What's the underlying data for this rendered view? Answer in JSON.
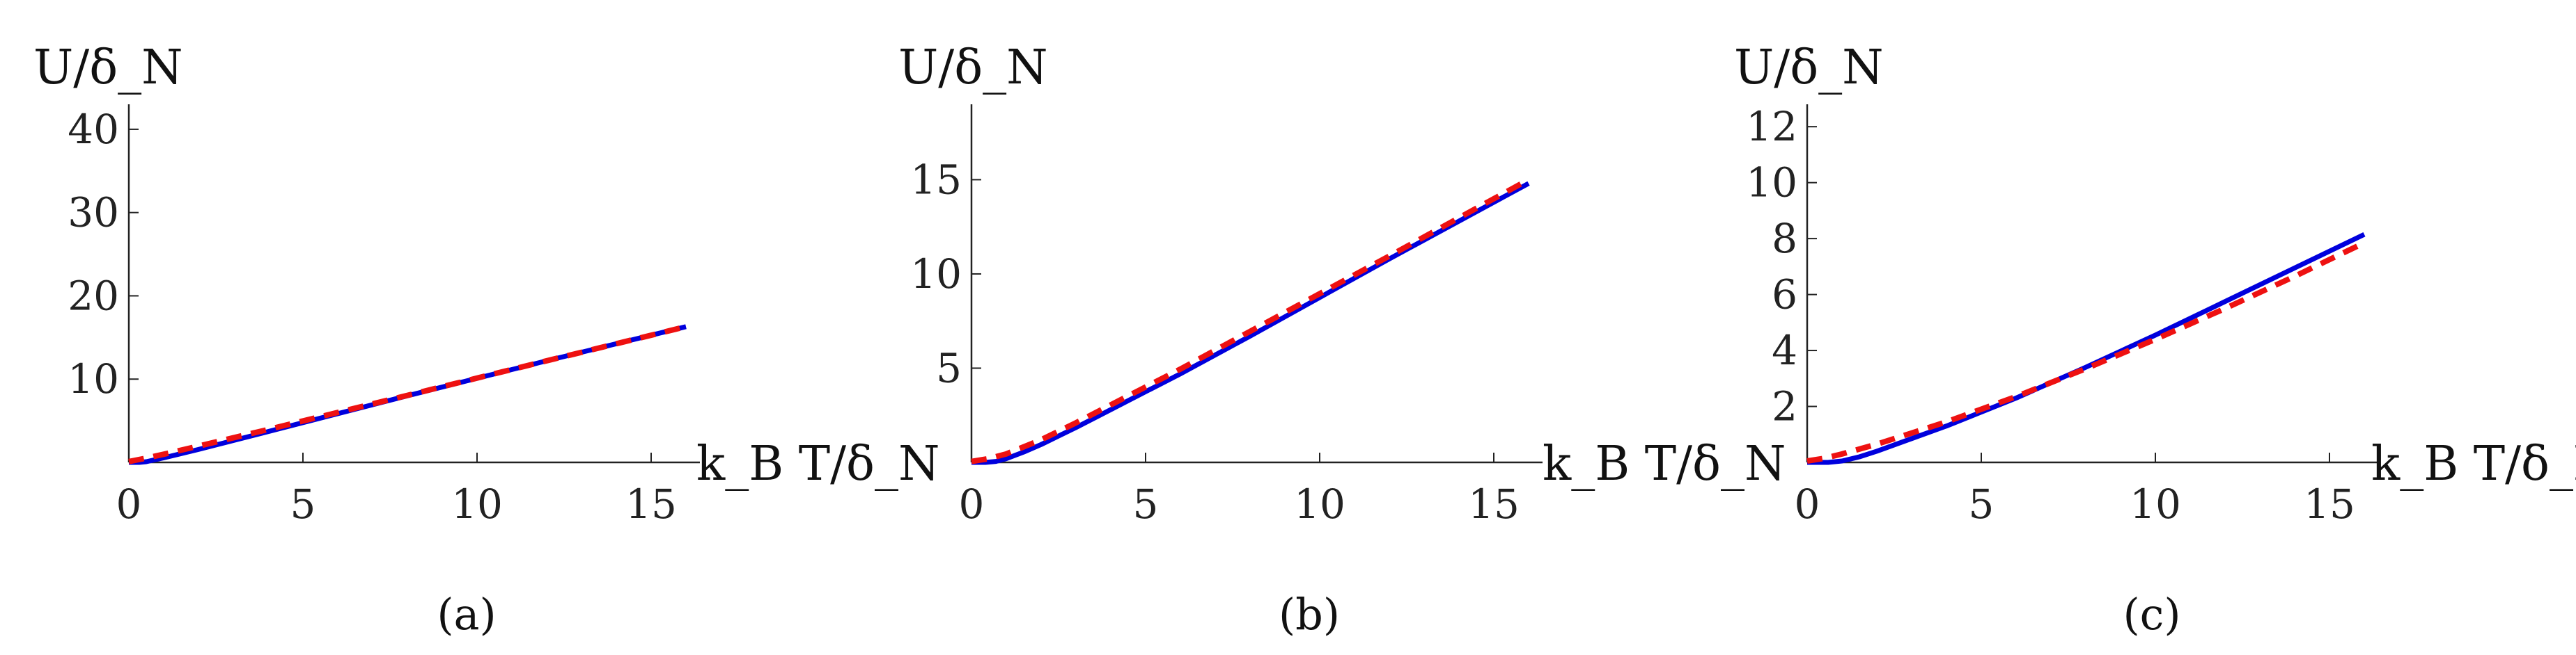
{
  "style": {
    "solid_color": "#0000dd",
    "dashed_color": "#ee1111",
    "axis_color": "#222222"
  },
  "chart_data": [
    {
      "type": "line",
      "panel_label": "(a)",
      "caption_letter": "a",
      "xlabel": "k_B T/δ_N",
      "ylabel": "U/δ_N",
      "xlim": [
        0,
        16
      ],
      "ylim": [
        0,
        43
      ],
      "xticks": [
        0,
        5,
        10,
        15
      ],
      "yticks": [
        10,
        20,
        30,
        40
      ],
      "series": [
        {
          "style": "solid",
          "x": [
            0,
            0.3,
            0.5,
            1,
            2,
            4,
            8,
            12,
            16
          ],
          "y": [
            0,
            0,
            0.08,
            0.55,
            1.55,
            3.7,
            8.0,
            12.2,
            16.3
          ]
        },
        {
          "style": "dashed",
          "x": [
            0,
            0.5,
            1,
            2,
            4,
            8,
            12,
            16
          ],
          "y": [
            0.1,
            0.52,
            0.98,
            1.95,
            3.95,
            8.05,
            12.2,
            16.3
          ]
        }
      ]
    },
    {
      "type": "line",
      "panel_label": "(b)",
      "caption_letter": "b",
      "xlabel": "k_B T/δ_N",
      "ylabel": "U/δ_N",
      "xlim": [
        0,
        16
      ],
      "ylim": [
        0,
        19
      ],
      "xticks": [
        0,
        5,
        10,
        15
      ],
      "yticks": [
        5,
        10,
        15
      ],
      "series": [
        {
          "style": "solid",
          "x": [
            0,
            0.4,
            0.7,
            1,
            1.5,
            2,
            3,
            4,
            6,
            8,
            12,
            16
          ],
          "y": [
            0,
            0,
            0.05,
            0.2,
            0.55,
            0.95,
            1.85,
            2.8,
            4.7,
            6.7,
            10.8,
            14.8
          ]
        },
        {
          "style": "dashed",
          "x": [
            0,
            0.5,
            1,
            2,
            3,
            4,
            6,
            8,
            12,
            16
          ],
          "y": [
            0.05,
            0.2,
            0.45,
            1.2,
            2.1,
            3.05,
            4.95,
            6.95,
            10.95,
            15.0
          ]
        }
      ]
    },
    {
      "type": "line",
      "panel_label": "(c)",
      "caption_letter": "c",
      "xlabel": "k_B T/δ_N",
      "ylabel": "U/δ_N",
      "xlim": [
        0,
        16
      ],
      "ylim": [
        0,
        12.8
      ],
      "xticks": [
        0,
        5,
        10,
        15
      ],
      "yticks": [
        2,
        4,
        6,
        8,
        10,
        12
      ],
      "series": [
        {
          "style": "solid",
          "x": [
            0,
            0.6,
            1,
            1.5,
            2,
            3,
            4,
            6,
            8,
            10,
            12,
            14,
            16
          ],
          "y": [
            0,
            0,
            0.05,
            0.2,
            0.4,
            0.85,
            1.3,
            2.3,
            3.4,
            4.55,
            5.75,
            6.95,
            8.15
          ]
        },
        {
          "style": "dashed",
          "x": [
            0,
            0.5,
            1,
            2,
            3,
            4,
            6,
            8,
            10,
            12,
            14,
            16
          ],
          "y": [
            0.05,
            0.15,
            0.3,
            0.65,
            1.05,
            1.45,
            2.35,
            3.35,
            4.4,
            5.5,
            6.65,
            7.85
          ]
        }
      ]
    }
  ]
}
